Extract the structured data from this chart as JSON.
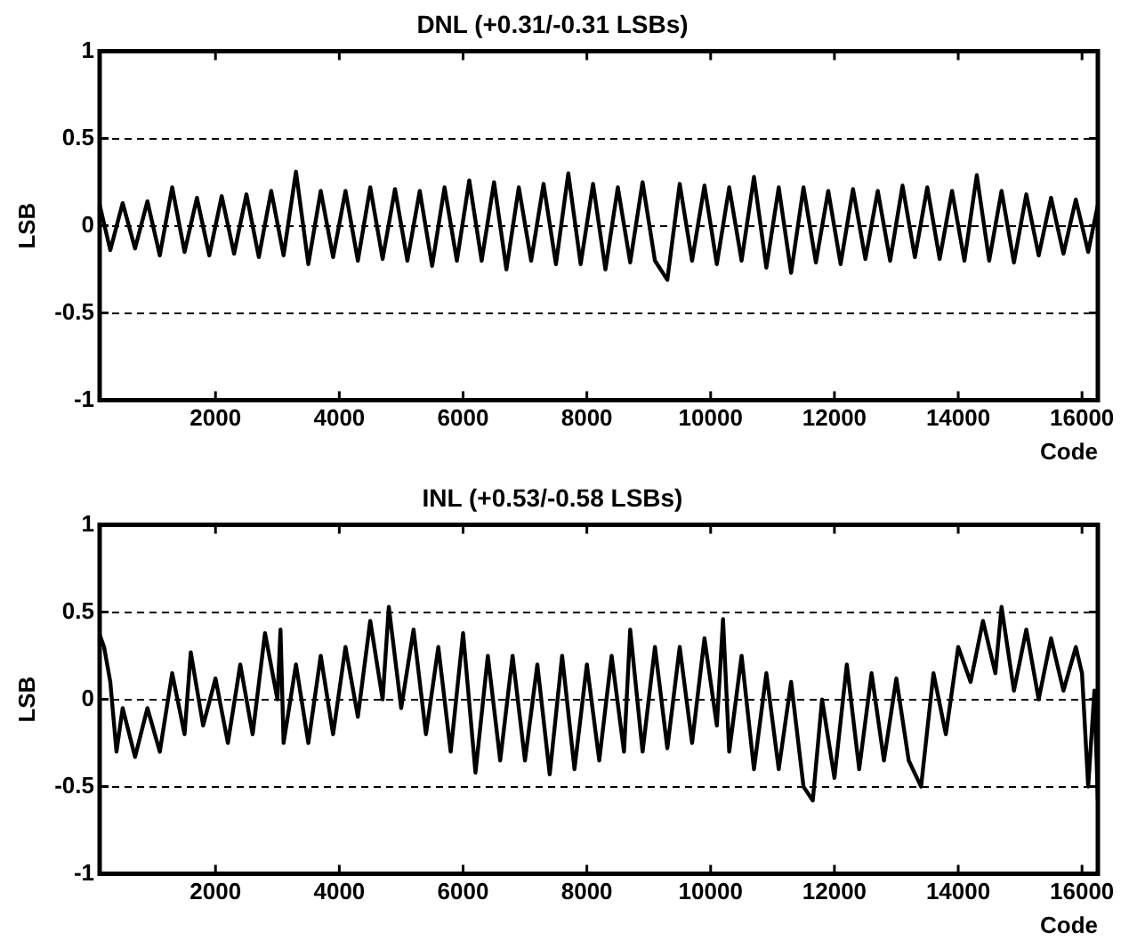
{
  "chart_data": [
    {
      "type": "line",
      "title": "DNL (+0.31/-0.31 LSBs)",
      "xlabel": "Code",
      "ylabel": "LSB",
      "xlim": [
        128,
        16256
      ],
      "xticks": [
        2000,
        4000,
        6000,
        8000,
        10000,
        12000,
        14000,
        16000
      ],
      "ylim": [
        -1,
        1
      ],
      "yticks": [
        -1,
        -0.5,
        0,
        0.5,
        1
      ],
      "grid": "y",
      "legend": false,
      "marker": "none",
      "series": [
        {
          "color": "#000000",
          "x": [
            128,
            300,
            500,
            700,
            900,
            1100,
            1300,
            1500,
            1700,
            1900,
            2100,
            2300,
            2500,
            2700,
            2900,
            3100,
            3300,
            3500,
            3700,
            3900,
            4100,
            4300,
            4500,
            4700,
            4900,
            5100,
            5300,
            5500,
            5700,
            5900,
            6100,
            6300,
            6500,
            6700,
            6900,
            7100,
            7300,
            7500,
            7700,
            7900,
            8100,
            8300,
            8500,
            8700,
            8900,
            9100,
            9300,
            9500,
            9700,
            9900,
            10100,
            10300,
            10500,
            10700,
            10900,
            11100,
            11300,
            11500,
            11700,
            11900,
            12100,
            12300,
            12500,
            12700,
            12900,
            13100,
            13300,
            13500,
            13700,
            13900,
            14100,
            14300,
            14500,
            14700,
            14900,
            15100,
            15300,
            15500,
            15700,
            15900,
            16100,
            16256
          ],
          "values": [
            0.12,
            -0.14,
            0.13,
            -0.13,
            0.14,
            -0.17,
            0.22,
            -0.15,
            0.16,
            -0.17,
            0.17,
            -0.16,
            0.18,
            -0.18,
            0.2,
            -0.17,
            0.31,
            -0.22,
            0.2,
            -0.18,
            0.2,
            -0.2,
            0.22,
            -0.19,
            0.21,
            -0.2,
            0.2,
            -0.23,
            0.22,
            -0.2,
            0.26,
            -0.2,
            0.25,
            -0.25,
            0.22,
            -0.2,
            0.24,
            -0.22,
            0.3,
            -0.22,
            0.24,
            -0.25,
            0.22,
            -0.21,
            0.25,
            -0.2,
            -0.31,
            0.24,
            -0.2,
            0.23,
            -0.22,
            0.22,
            -0.2,
            0.28,
            -0.24,
            0.22,
            -0.27,
            0.22,
            -0.21,
            0.2,
            -0.22,
            0.21,
            -0.19,
            0.2,
            -0.2,
            0.23,
            -0.18,
            0.22,
            -0.19,
            0.2,
            -0.2,
            0.29,
            -0.2,
            0.2,
            -0.21,
            0.18,
            -0.17,
            0.16,
            -0.16,
            0.15,
            -0.15,
            0.12
          ]
        }
      ]
    },
    {
      "type": "line",
      "title": "INL (+0.53/-0.58 LSBs)",
      "xlabel": "Code",
      "ylabel": "LSB",
      "xlim": [
        128,
        16256
      ],
      "xticks": [
        2000,
        4000,
        6000,
        8000,
        10000,
        12000,
        14000,
        16000
      ],
      "ylim": [
        -1,
        1
      ],
      "yticks": [
        -1,
        -0.5,
        0,
        0.5,
        1
      ],
      "grid": "y",
      "legend": false,
      "marker": "none",
      "series": [
        {
          "color": "#000000",
          "x": [
            128,
            200,
            300,
            400,
            500,
            700,
            900,
            1100,
            1300,
            1500,
            1600,
            1800,
            2000,
            2200,
            2400,
            2600,
            2800,
            3000,
            3050,
            3100,
            3300,
            3500,
            3700,
            3900,
            4100,
            4300,
            4500,
            4700,
            4800,
            5000,
            5200,
            5400,
            5600,
            5800,
            6000,
            6200,
            6400,
            6600,
            6800,
            7000,
            7200,
            7400,
            7600,
            7800,
            8000,
            8200,
            8400,
            8600,
            8700,
            8900,
            9100,
            9300,
            9500,
            9700,
            9900,
            10100,
            10200,
            10300,
            10500,
            10700,
            10900,
            11100,
            11300,
            11500,
            11650,
            11800,
            12000,
            12200,
            12400,
            12600,
            12800,
            13000,
            13200,
            13400,
            13600,
            13800,
            14000,
            14200,
            14400,
            14600,
            14700,
            14900,
            15100,
            15300,
            15500,
            15700,
            15900,
            16000,
            16100,
            16200,
            16256
          ],
          "values": [
            0.37,
            0.3,
            0.1,
            -0.3,
            -0.05,
            -0.33,
            -0.05,
            -0.3,
            0.15,
            -0.2,
            0.27,
            -0.15,
            0.12,
            -0.25,
            0.2,
            -0.2,
            0.38,
            0.0,
            0.4,
            -0.25,
            0.2,
            -0.25,
            0.25,
            -0.2,
            0.3,
            -0.1,
            0.45,
            0.0,
            0.53,
            -0.05,
            0.4,
            -0.2,
            0.3,
            -0.3,
            0.38,
            -0.42,
            0.25,
            -0.35,
            0.25,
            -0.35,
            0.2,
            -0.43,
            0.25,
            -0.4,
            0.2,
            -0.35,
            0.25,
            -0.3,
            0.4,
            -0.3,
            0.3,
            -0.28,
            0.3,
            -0.25,
            0.35,
            -0.15,
            0.46,
            -0.3,
            0.25,
            -0.4,
            0.15,
            -0.4,
            0.1,
            -0.5,
            -0.58,
            0.0,
            -0.45,
            0.2,
            -0.4,
            0.15,
            -0.35,
            0.12,
            -0.35,
            -0.5,
            0.15,
            -0.2,
            0.3,
            0.1,
            0.45,
            0.15,
            0.53,
            0.05,
            0.4,
            0.0,
            0.35,
            0.05,
            0.3,
            0.15,
            -0.5,
            0.05,
            -0.58
          ]
        }
      ]
    }
  ]
}
